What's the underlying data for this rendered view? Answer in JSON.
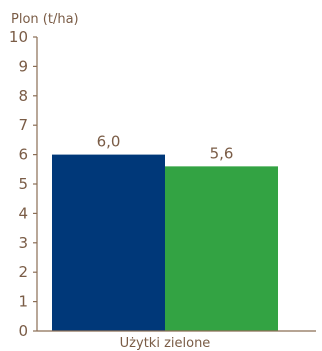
{
  "chart_data": {
    "type": "bar",
    "ylabel": "Plon (t/ha)",
    "ylim": [
      0,
      10
    ],
    "y_ticks": [
      "0",
      "1",
      "2",
      "3",
      "4",
      "5",
      "6",
      "7",
      "8",
      "9",
      "10"
    ],
    "categories": [
      "Użytki zielone"
    ],
    "series": [
      {
        "values": [
          6.0
        ],
        "value_labels": [
          "6,0"
        ],
        "color": "#003879"
      },
      {
        "values": [
          5.6
        ],
        "value_labels": [
          "5,6"
        ],
        "color": "#33a343"
      }
    ],
    "grid": false,
    "legend": "none",
    "colors": {
      "axis": "#8a6d55",
      "text": "#7a5c46"
    }
  }
}
